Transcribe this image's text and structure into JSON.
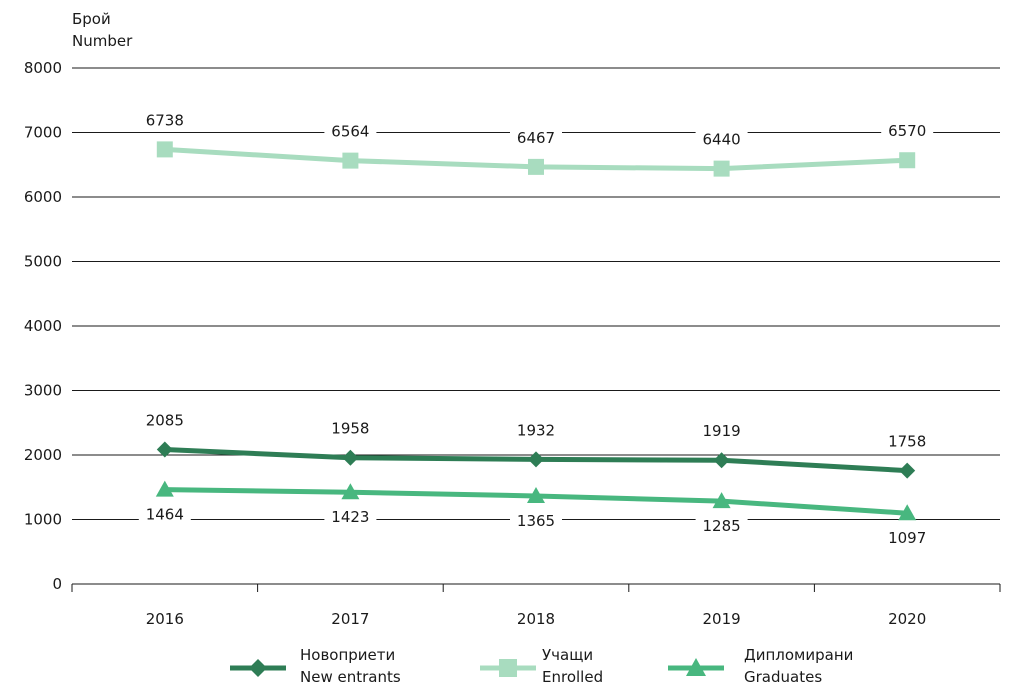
{
  "chart_data": {
    "type": "line",
    "ylabel_lines": [
      "Брой",
      "Number"
    ],
    "ylim": [
      0,
      8000
    ],
    "yticks": [
      0,
      1000,
      2000,
      3000,
      4000,
      5000,
      6000,
      7000,
      8000
    ],
    "categories": [
      "2016",
      "2017",
      "2018",
      "2019",
      "2020"
    ],
    "grid": "horizontal",
    "legend_position": "bottom",
    "series": [
      {
        "name_lines": [
          "Новоприети",
          "New entrants"
        ],
        "values": [
          2085,
          1958,
          1932,
          1919,
          1758
        ],
        "color": "#2e7d55",
        "marker": "diamond",
        "label_position": "above"
      },
      {
        "name_lines": [
          "Учащи",
          "Enrolled"
        ],
        "values": [
          6738,
          6564,
          6467,
          6440,
          6570
        ],
        "color": "#a8dcbf",
        "marker": "square",
        "label_position": "above"
      },
      {
        "name_lines": [
          "Дипломирани",
          "Graduates"
        ],
        "values": [
          1464,
          1423,
          1365,
          1285,
          1097
        ],
        "color": "#48b77f",
        "marker": "triangle",
        "label_position": "below"
      }
    ]
  }
}
